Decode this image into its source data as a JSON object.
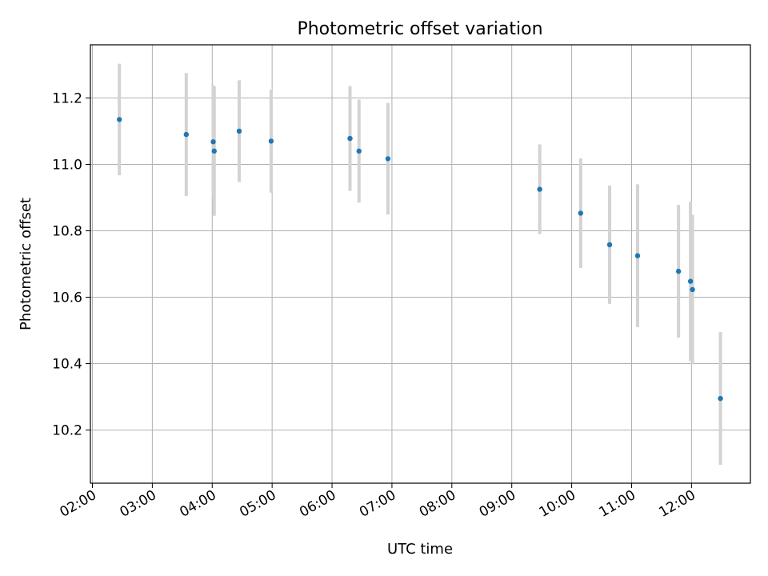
{
  "chart_data": {
    "type": "scatter",
    "title": "Photometric offset variation",
    "xlabel": "UTC time",
    "ylabel": "Photometric offset",
    "x_ticks": [
      "02:00",
      "03:00",
      "04:00",
      "05:00",
      "06:00",
      "07:00",
      "08:00",
      "09:00",
      "10:00",
      "11:00",
      "12:00"
    ],
    "y_ticks": [
      "10.2",
      "10.4",
      "10.6",
      "10.8",
      "11.0",
      "11.2"
    ],
    "xlim": [
      "01:58",
      "12:59"
    ],
    "ylim": [
      10.04,
      11.36
    ],
    "grid": true,
    "colors": {
      "marker": "#1f77b4",
      "errorbar": "#d3d3d3",
      "grid": "#b0b0b0"
    },
    "series": [
      {
        "x": [
          "02:27",
          "03:34",
          "04:01",
          "04:02",
          "04:27",
          "04:59",
          "06:18",
          "06:27",
          "06:56",
          "09:28",
          "10:09",
          "10:38",
          "11:06",
          "11:47",
          "11:59",
          "12:01",
          "12:29"
        ],
        "y": [
          11.135,
          11.09,
          11.068,
          11.04,
          11.1,
          11.07,
          11.078,
          11.04,
          11.017,
          10.925,
          10.853,
          10.758,
          10.725,
          10.678,
          10.648,
          10.623,
          10.295
        ],
        "yerr": [
          0.168,
          0.185,
          0.17,
          0.195,
          0.153,
          0.155,
          0.158,
          0.155,
          0.168,
          0.135,
          0.165,
          0.178,
          0.215,
          0.2,
          0.24,
          0.225,
          0.2
        ]
      }
    ]
  }
}
